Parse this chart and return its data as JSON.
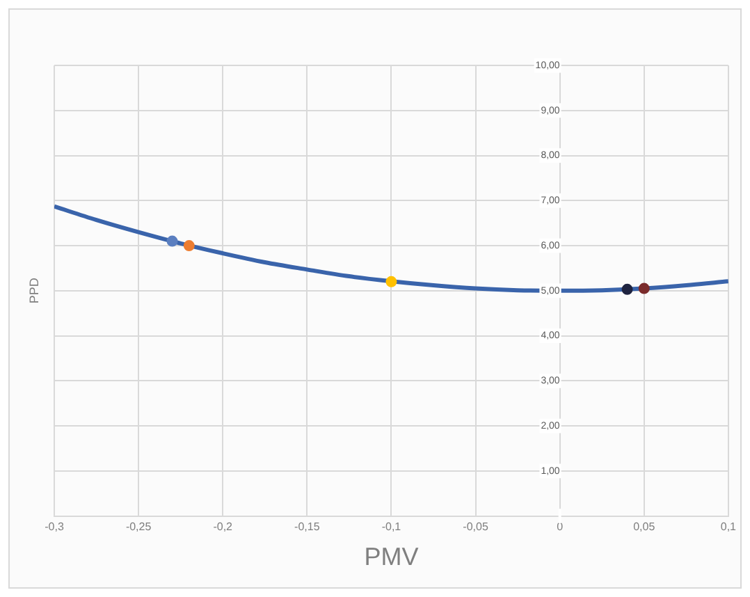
{
  "chart_data": {
    "type": "line",
    "xlabel": "PMV",
    "ylabel": "PPD",
    "xlim": [
      -0.3,
      0.1
    ],
    "ylim": [
      0,
      10
    ],
    "xticks": [
      {
        "value": -0.3,
        "label": "-0,3"
      },
      {
        "value": -0.25,
        "label": "-0,25"
      },
      {
        "value": -0.2,
        "label": "-0,2"
      },
      {
        "value": -0.15,
        "label": "-0,15"
      },
      {
        "value": -0.1,
        "label": "-0,1"
      },
      {
        "value": -0.05,
        "label": "-0,05"
      },
      {
        "value": 0,
        "label": "0"
      },
      {
        "value": 0.05,
        "label": "0,05"
      },
      {
        "value": 0.1,
        "label": "0,1"
      }
    ],
    "yticks": [
      {
        "value": 0,
        "label": null
      },
      {
        "value": 1,
        "label": "1,00"
      },
      {
        "value": 2,
        "label": "2,00"
      },
      {
        "value": 3,
        "label": "3,00"
      },
      {
        "value": 4,
        "label": "4,00"
      },
      {
        "value": 5,
        "label": "5,00"
      },
      {
        "value": 6,
        "label": "6,00"
      },
      {
        "value": 7,
        "label": "7,00"
      },
      {
        "value": 8,
        "label": "8,00"
      },
      {
        "value": 9,
        "label": "9,00"
      },
      {
        "value": 10,
        "label": "10,00"
      }
    ],
    "grid": true,
    "legend": false,
    "line_style": "solid",
    "series": [
      {
        "marker": "none",
        "color": "#3a64ab",
        "x": [
          -0.3,
          -0.275,
          -0.25,
          -0.225,
          -0.2,
          -0.175,
          -0.15,
          -0.125,
          -0.1,
          -0.075,
          -0.05,
          -0.025,
          0,
          0.025,
          0.05,
          0.075,
          0.1
        ],
        "values": [
          6.87,
          6.57,
          6.3,
          6.05,
          5.83,
          5.63,
          5.47,
          5.32,
          5.21,
          5.12,
          5.05,
          5.01,
          5,
          5.01,
          5.05,
          5.12,
          5.21
        ]
      },
      {
        "type": "scatter",
        "marker": "circle",
        "color": "#5b7fc0",
        "x": [
          -0.23
        ],
        "values": [
          6.1
        ]
      },
      {
        "type": "scatter",
        "marker": "circle",
        "color": "#ed7d31",
        "x": [
          -0.22
        ],
        "values": [
          6.0
        ]
      },
      {
        "type": "scatter",
        "marker": "circle",
        "color": "#ffc000",
        "x": [
          -0.1
        ],
        "values": [
          5.2
        ]
      },
      {
        "type": "scatter",
        "marker": "circle",
        "color": "#1f2440",
        "x": [
          0.04
        ],
        "values": [
          5.03
        ]
      },
      {
        "type": "scatter",
        "marker": "circle",
        "color": "#7b2c2c",
        "x": [
          0.05
        ],
        "values": [
          5.05
        ]
      }
    ]
  }
}
